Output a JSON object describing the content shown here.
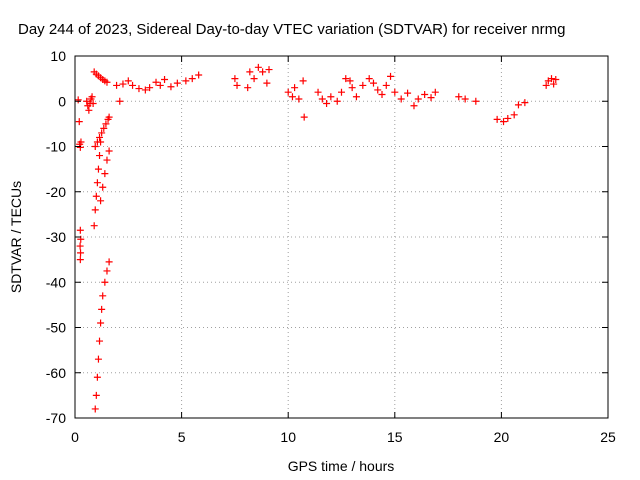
{
  "chart_data": {
    "type": "scatter",
    "title": "Day 244 of 2023, Sidereal Day-to-day VTEC variation (SDTVAR) for receiver nrmg",
    "xlabel": "GPS time / hours",
    "ylabel": "SDTVAR / TECUs",
    "xlim": [
      0,
      25
    ],
    "ylim": [
      -70,
      10
    ],
    "xticks": [
      0,
      5,
      10,
      15,
      20,
      25
    ],
    "yticks": [
      10,
      0,
      -10,
      -20,
      -30,
      -40,
      -50,
      -60,
      -70
    ],
    "xtick_labels": [
      "0",
      "5",
      "10",
      "15",
      "20",
      "25"
    ],
    "ytick_labels": [
      "10",
      "0",
      "-10",
      "-20",
      "-30",
      "-40",
      "-50",
      "-60",
      "-70"
    ],
    "grid": true,
    "marker": "+",
    "color": "#ff0000",
    "series": [
      {
        "name": "SDTVAR",
        "points": [
          [
            0.15,
            0.3
          ],
          [
            0.2,
            -4.5
          ],
          [
            0.22,
            -9.5
          ],
          [
            0.25,
            -10.2
          ],
          [
            0.28,
            -9.0
          ],
          [
            0.25,
            -28.5
          ],
          [
            0.27,
            -30.5
          ],
          [
            0.24,
            -32.0
          ],
          [
            0.26,
            -33.5
          ],
          [
            0.25,
            -35.0
          ],
          [
            0.55,
            0.0
          ],
          [
            0.6,
            -1.0
          ],
          [
            0.65,
            -2.0
          ],
          [
            0.7,
            -0.5
          ],
          [
            0.75,
            0.5
          ],
          [
            0.8,
            1.0
          ],
          [
            0.85,
            -0.5
          ],
          [
            0.9,
            6.5
          ],
          [
            1.0,
            6.0
          ],
          [
            1.1,
            5.6
          ],
          [
            1.2,
            5.2
          ],
          [
            1.3,
            4.8
          ],
          [
            1.4,
            4.5
          ],
          [
            1.5,
            4.2
          ],
          [
            0.95,
            -10.0
          ],
          [
            1.05,
            -9.0
          ],
          [
            1.15,
            -8.0
          ],
          [
            1.25,
            -7.0
          ],
          [
            1.35,
            -6.0
          ],
          [
            1.45,
            -5.0
          ],
          [
            1.55,
            -4.0
          ],
          [
            1.6,
            -3.5
          ],
          [
            0.9,
            -27.5
          ],
          [
            0.95,
            -24.0
          ],
          [
            1.0,
            -21.0
          ],
          [
            1.05,
            -18.0
          ],
          [
            1.1,
            -15.0
          ],
          [
            1.15,
            -12.0
          ],
          [
            1.2,
            -9.0
          ],
          [
            1.2,
            -22.0
          ],
          [
            1.3,
            -19.0
          ],
          [
            1.4,
            -16.0
          ],
          [
            1.5,
            -13.0
          ],
          [
            1.6,
            -11.0
          ],
          [
            0.95,
            -68.0
          ],
          [
            1.0,
            -65.0
          ],
          [
            1.05,
            -61.0
          ],
          [
            1.1,
            -57.0
          ],
          [
            1.15,
            -53.0
          ],
          [
            1.2,
            -49.0
          ],
          [
            1.25,
            -46.0
          ],
          [
            1.3,
            -43.0
          ],
          [
            1.4,
            -40.0
          ],
          [
            1.5,
            -37.5
          ],
          [
            1.6,
            -35.5
          ],
          [
            1.95,
            3.5
          ],
          [
            2.1,
            0.0
          ],
          [
            2.25,
            3.8
          ],
          [
            2.5,
            4.5
          ],
          [
            2.7,
            3.5
          ],
          [
            3.0,
            2.8
          ],
          [
            3.3,
            2.5
          ],
          [
            3.5,
            3.0
          ],
          [
            3.8,
            4.2
          ],
          [
            4.0,
            3.5
          ],
          [
            4.2,
            4.8
          ],
          [
            4.5,
            3.2
          ],
          [
            4.8,
            4.0
          ],
          [
            5.2,
            4.5
          ],
          [
            5.5,
            5.0
          ],
          [
            5.8,
            5.8
          ],
          [
            7.5,
            5.0
          ],
          [
            7.6,
            3.5
          ],
          [
            8.1,
            3.0
          ],
          [
            8.2,
            6.5
          ],
          [
            8.4,
            5.0
          ],
          [
            8.6,
            7.5
          ],
          [
            8.8,
            6.5
          ],
          [
            9.0,
            4.0
          ],
          [
            9.1,
            7.0
          ],
          [
            10.0,
            2.0
          ],
          [
            10.2,
            1.0
          ],
          [
            10.3,
            3.0
          ],
          [
            10.5,
            0.5
          ],
          [
            10.7,
            4.5
          ],
          [
            10.75,
            -3.5
          ],
          [
            11.4,
            2.0
          ],
          [
            11.6,
            0.5
          ],
          [
            11.8,
            -0.5
          ],
          [
            12.0,
            1.0
          ],
          [
            12.3,
            0.0
          ],
          [
            12.5,
            2.0
          ],
          [
            12.7,
            5.0
          ],
          [
            12.9,
            4.5
          ],
          [
            13.0,
            3.0
          ],
          [
            13.2,
            1.0
          ],
          [
            13.5,
            3.5
          ],
          [
            13.8,
            5.0
          ],
          [
            14.0,
            4.0
          ],
          [
            14.2,
            2.5
          ],
          [
            14.4,
            1.5
          ],
          [
            14.6,
            3.5
          ],
          [
            14.8,
            5.5
          ],
          [
            15.0,
            2.0
          ],
          [
            15.3,
            0.5
          ],
          [
            15.6,
            1.8
          ],
          [
            15.9,
            -1.0
          ],
          [
            16.1,
            0.5
          ],
          [
            16.4,
            1.5
          ],
          [
            16.7,
            0.8
          ],
          [
            16.9,
            2.0
          ],
          [
            18.0,
            1.0
          ],
          [
            18.3,
            0.5
          ],
          [
            18.8,
            0.0
          ],
          [
            19.8,
            -4.0
          ],
          [
            20.1,
            -4.5
          ],
          [
            20.3,
            -3.8
          ],
          [
            20.6,
            -3.0
          ],
          [
            20.8,
            -0.8
          ],
          [
            21.1,
            -0.3
          ],
          [
            22.1,
            3.5
          ],
          [
            22.2,
            4.5
          ],
          [
            22.35,
            5.0
          ],
          [
            22.45,
            3.8
          ],
          [
            22.55,
            4.8
          ]
        ]
      }
    ]
  }
}
